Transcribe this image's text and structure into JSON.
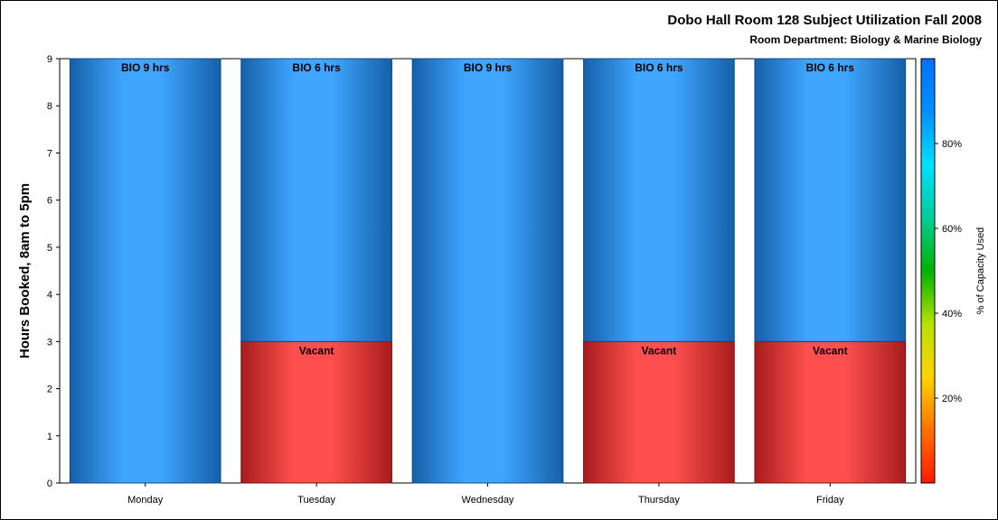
{
  "chart_data": {
    "type": "bar",
    "stacked": true,
    "title": "Dobo Hall Room 128 Subject Utilization Fall 2008",
    "subtitle": "Room Department:  Biology & Marine Biology",
    "xlabel": "",
    "ylabel": "Hours Booked, 8am to 5pm",
    "ylim": [
      0,
      9
    ],
    "yticks": [
      0,
      1,
      2,
      3,
      4,
      5,
      6,
      7,
      8,
      9
    ],
    "categories": [
      "Monday",
      "Tuesday",
      "Wednesday",
      "Thursday",
      "Friday"
    ],
    "series": [
      {
        "name": "Vacant",
        "values": [
          0,
          3,
          0,
          3,
          3
        ],
        "color": "#ff4f4f",
        "labels": [
          "",
          "Vacant",
          "",
          "Vacant",
          "Vacant"
        ]
      },
      {
        "name": "BIO",
        "values": [
          9,
          6,
          9,
          6,
          6
        ],
        "color": "#3fa5ff",
        "labels": [
          "BIO 9 hrs",
          "BIO 6 hrs",
          "BIO 9 hrs",
          "BIO 6 hrs",
          "BIO 6 hrs"
        ]
      }
    ],
    "colorbar": {
      "title": "% of Capacity Used",
      "ticks": [
        "20%",
        "40%",
        "60%",
        "80%"
      ],
      "tick_values": [
        20,
        40,
        60,
        80
      ],
      "range": [
        0,
        100
      ],
      "colors": [
        "#ff1a00",
        "#ff7000",
        "#ffd400",
        "#b8e000",
        "#00b300",
        "#00cc99",
        "#00e0ff",
        "#0090ff",
        "#0070ff"
      ]
    },
    "grid": false,
    "legend": "none"
  }
}
